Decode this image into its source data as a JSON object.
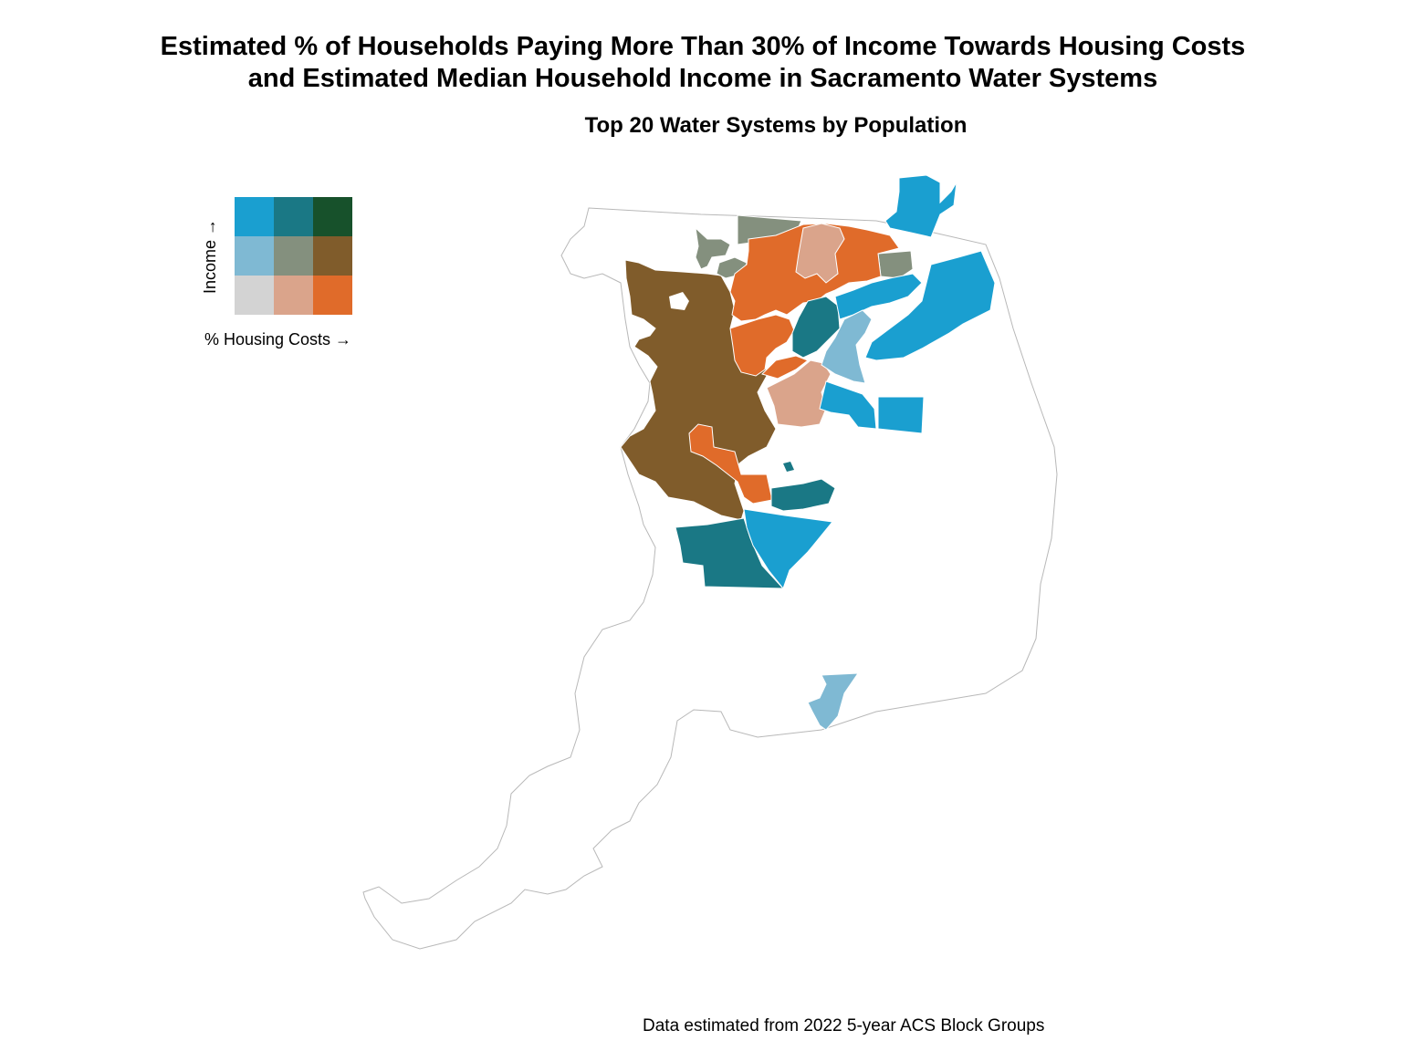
{
  "title": {
    "line1": "Estimated % of Households Paying More Than 30% of Income Towards Housing Costs",
    "line2": "and Estimated Median Household Income in Sacramento Water Systems"
  },
  "subtitle": "Top 20 Water Systems by Population",
  "caption": "Data estimated from 2022 5-year ACS Block Groups",
  "legend": {
    "y_label": "Income →",
    "x_label": "% Housing Costs →",
    "grid_rows_top_to_bottom": [
      [
        "#1a9fd0",
        "#1a7885",
        "#17512b"
      ],
      [
        "#7fb9d3",
        "#84907e",
        "#805c2b"
      ],
      [
        "#d3d3d3",
        "#daa48b",
        "#e06b2a"
      ]
    ]
  },
  "colors": {
    "high_income_low_cost": "#1a9fd0",
    "high_income_mid_cost": "#1a7885",
    "mid_income_low_cost": "#7fb9d3",
    "mid_income_mid_cost": "#84907e",
    "mid_income_high_cost": "#805c2b",
    "low_income_mid_cost": "#daa48b",
    "low_income_high_cost": "#e06b2a",
    "county_outline": "#b8b8b8"
  }
}
